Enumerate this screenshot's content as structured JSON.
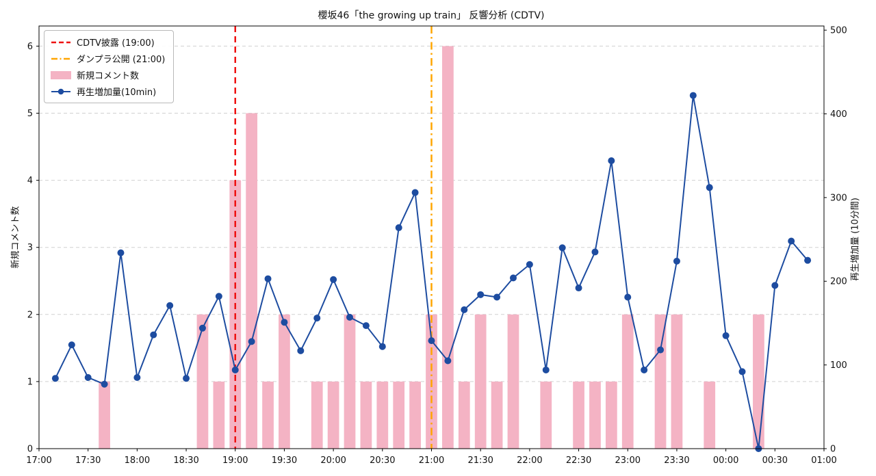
{
  "figure": {
    "title": "櫻坂46「the growing up train」 反響分析 (CDTV)",
    "background": "#ffffff"
  },
  "colors": {
    "bar_pink": "#f4b3c4",
    "line_blue": "#1d4ca0",
    "event_red": "#ee1111",
    "event_orange": "#ffa500",
    "grid": "#d0d0d0",
    "text": "#111111",
    "spine": "#000000"
  },
  "legend": {
    "position": "upper left",
    "items": [
      {
        "label": "CDTV披露 (19:00)",
        "swatch": "red-dashed-line"
      },
      {
        "label": "ダンプラ公開 (21:00)",
        "swatch": "orange-dashdot-line"
      },
      {
        "label": "新規コメント数",
        "swatch": "pink-patch"
      },
      {
        "label": "再生増加量(10min)",
        "swatch": "blue-line-marker"
      }
    ]
  },
  "chart_data": {
    "type": "combo-bar-line",
    "title": "櫻坂46「the growing up train」 反響分析 (CDTV)",
    "grid": {
      "horizontal": true,
      "style": "dashed"
    },
    "x_axis": {
      "start": "17:00",
      "end": "01:00",
      "interval_min": 10,
      "total_minutes": 480,
      "tick_labels": [
        "17:00",
        "17:30",
        "18:00",
        "18:30",
        "19:00",
        "19:30",
        "20:00",
        "20:30",
        "21:00",
        "21:30",
        "22:00",
        "22:30",
        "23:00",
        "23:30",
        "00:00",
        "00:30",
        "01:00"
      ]
    },
    "y_left": {
      "label": "新規コメント数",
      "range": [
        0,
        6.3
      ],
      "ticks": [
        0,
        1,
        2,
        3,
        4,
        5,
        6
      ]
    },
    "y_right": {
      "label": "再生増加量 (10分間)",
      "range": [
        0,
        505
      ],
      "ticks": [
        0,
        100,
        200,
        300,
        400,
        500
      ]
    },
    "events": [
      {
        "label": "CDTV披露 (19:00)",
        "time": "19:00",
        "style": "dashed",
        "color_key": "event_red"
      },
      {
        "label": "ダンプラ公開 (21:00)",
        "time": "21:00",
        "style": "dashdot",
        "color_key": "event_orange"
      }
    ],
    "series": [
      {
        "name": "新規コメント数",
        "type": "bar",
        "axis": "left",
        "color_key": "bar_pink",
        "points": [
          {
            "time": "17:40",
            "value": 1
          },
          {
            "time": "18:40",
            "value": 2
          },
          {
            "time": "18:50",
            "value": 1
          },
          {
            "time": "19:00",
            "value": 4
          },
          {
            "time": "19:10",
            "value": 5
          },
          {
            "time": "19:20",
            "value": 1
          },
          {
            "time": "19:30",
            "value": 2
          },
          {
            "time": "19:50",
            "value": 1
          },
          {
            "time": "20:00",
            "value": 1
          },
          {
            "time": "20:10",
            "value": 2
          },
          {
            "time": "20:20",
            "value": 1
          },
          {
            "time": "20:30",
            "value": 1
          },
          {
            "time": "20:40",
            "value": 1
          },
          {
            "time": "20:50",
            "value": 1
          },
          {
            "time": "21:00",
            "value": 2
          },
          {
            "time": "21:10",
            "value": 6
          },
          {
            "time": "21:20",
            "value": 1
          },
          {
            "time": "21:30",
            "value": 2
          },
          {
            "time": "21:40",
            "value": 1
          },
          {
            "time": "21:50",
            "value": 2
          },
          {
            "time": "22:10",
            "value": 1
          },
          {
            "time": "22:30",
            "value": 1
          },
          {
            "time": "22:40",
            "value": 1
          },
          {
            "time": "22:50",
            "value": 1
          },
          {
            "time": "23:00",
            "value": 2
          },
          {
            "time": "23:20",
            "value": 2
          },
          {
            "time": "23:30",
            "value": 2
          },
          {
            "time": "23:50",
            "value": 1
          },
          {
            "time": "00:20",
            "value": 2
          }
        ]
      },
      {
        "name": "再生増加量(10min)",
        "type": "line",
        "axis": "right",
        "color_key": "line_blue",
        "marker": "circle",
        "points": [
          {
            "time": "17:10",
            "value": 84
          },
          {
            "time": "17:20",
            "value": 124
          },
          {
            "time": "17:30",
            "value": 85
          },
          {
            "time": "17:40",
            "value": 77
          },
          {
            "time": "17:50",
            "value": 234
          },
          {
            "time": "18:00",
            "value": 85
          },
          {
            "time": "18:10",
            "value": 136
          },
          {
            "time": "18:20",
            "value": 171
          },
          {
            "time": "18:30",
            "value": 84
          },
          {
            "time": "18:40",
            "value": 144
          },
          {
            "time": "18:50",
            "value": 182
          },
          {
            "time": "19:00",
            "value": 94
          },
          {
            "time": "19:10",
            "value": 128
          },
          {
            "time": "19:20",
            "value": 203
          },
          {
            "time": "19:30",
            "value": 151
          },
          {
            "time": "19:40",
            "value": 117
          },
          {
            "time": "19:50",
            "value": 156
          },
          {
            "time": "20:00",
            "value": 202
          },
          {
            "time": "20:10",
            "value": 157
          },
          {
            "time": "20:20",
            "value": 147
          },
          {
            "time": "20:30",
            "value": 122
          },
          {
            "time": "20:40",
            "value": 264
          },
          {
            "time": "20:50",
            "value": 306
          },
          {
            "time": "21:00",
            "value": 129
          },
          {
            "time": "21:10",
            "value": 105
          },
          {
            "time": "21:20",
            "value": 166
          },
          {
            "time": "21:30",
            "value": 184
          },
          {
            "time": "21:40",
            "value": 181
          },
          {
            "time": "21:50",
            "value": 204
          },
          {
            "time": "22:00",
            "value": 220
          },
          {
            "time": "22:10",
            "value": 94
          },
          {
            "time": "22:20",
            "value": 240
          },
          {
            "time": "22:30",
            "value": 192
          },
          {
            "time": "22:40",
            "value": 235
          },
          {
            "time": "22:50",
            "value": 344
          },
          {
            "time": "23:00",
            "value": 181
          },
          {
            "time": "23:10",
            "value": 94
          },
          {
            "time": "23:20",
            "value": 118
          },
          {
            "time": "23:30",
            "value": 224
          },
          {
            "time": "23:40",
            "value": 422
          },
          {
            "time": "23:50",
            "value": 312
          },
          {
            "time": "00:00",
            "value": 135
          },
          {
            "time": "00:10",
            "value": 92
          },
          {
            "time": "00:20",
            "value": 0
          },
          {
            "time": "00:30",
            "value": 195
          },
          {
            "time": "00:40",
            "value": 248
          },
          {
            "time": "00:50",
            "value": 225
          }
        ]
      }
    ]
  }
}
